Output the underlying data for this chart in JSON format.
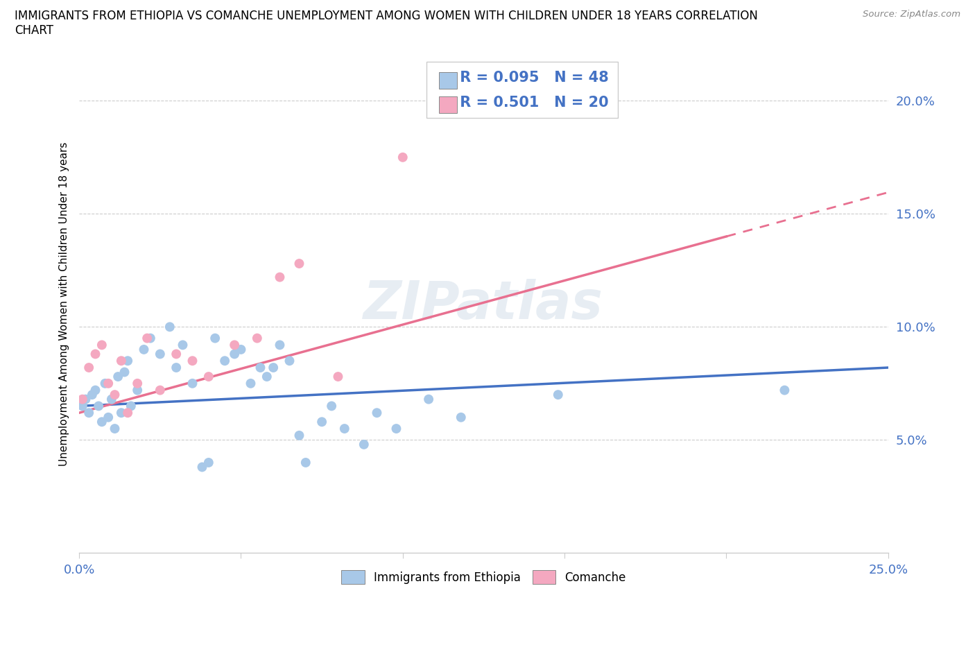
{
  "title": "IMMIGRANTS FROM ETHIOPIA VS COMANCHE UNEMPLOYMENT AMONG WOMEN WITH CHILDREN UNDER 18 YEARS CORRELATION\nCHART",
  "source": "Source: ZipAtlas.com",
  "ylabel": "Unemployment Among Women with Children Under 18 years",
  "xlim": [
    0.0,
    0.25
  ],
  "ylim": [
    0.0,
    0.22
  ],
  "xticks": [
    0.0,
    0.05,
    0.1,
    0.15,
    0.2,
    0.25
  ],
  "yticks": [
    0.05,
    0.1,
    0.15,
    0.2
  ],
  "xticklabels": [
    "0.0%",
    "",
    "",
    "",
    "",
    "25.0%"
  ],
  "yticklabels": [
    "5.0%",
    "10.0%",
    "15.0%",
    "20.0%"
  ],
  "ethiopia_color": "#a8c8e8",
  "comanche_color": "#f4a8c0",
  "trendline_ethiopia_color": "#4472c4",
  "trendline_comanche_color": "#e87090",
  "R_ethiopia": 0.095,
  "N_ethiopia": 48,
  "R_comanche": 0.501,
  "N_comanche": 20,
  "legend_label_ethiopia": "Immigrants from Ethiopia",
  "legend_label_comanche": "Comanche",
  "watermark": "ZIPatlas",
  "ethiopia_x": [
    0.001,
    0.002,
    0.003,
    0.004,
    0.005,
    0.006,
    0.007,
    0.008,
    0.009,
    0.01,
    0.011,
    0.012,
    0.013,
    0.014,
    0.015,
    0.016,
    0.018,
    0.02,
    0.022,
    0.025,
    0.028,
    0.03,
    0.032,
    0.035,
    0.038,
    0.04,
    0.042,
    0.045,
    0.048,
    0.05,
    0.053,
    0.056,
    0.058,
    0.06,
    0.062,
    0.065,
    0.068,
    0.07,
    0.075,
    0.078,
    0.082,
    0.088,
    0.092,
    0.098,
    0.108,
    0.118,
    0.148,
    0.218
  ],
  "ethiopia_y": [
    0.065,
    0.068,
    0.062,
    0.07,
    0.072,
    0.065,
    0.058,
    0.075,
    0.06,
    0.068,
    0.055,
    0.078,
    0.062,
    0.08,
    0.085,
    0.065,
    0.072,
    0.09,
    0.095,
    0.088,
    0.1,
    0.082,
    0.092,
    0.075,
    0.038,
    0.04,
    0.095,
    0.085,
    0.088,
    0.09,
    0.075,
    0.082,
    0.078,
    0.082,
    0.092,
    0.085,
    0.052,
    0.04,
    0.058,
    0.065,
    0.055,
    0.048,
    0.062,
    0.055,
    0.068,
    0.06,
    0.07,
    0.072
  ],
  "comanche_x": [
    0.001,
    0.003,
    0.005,
    0.007,
    0.009,
    0.011,
    0.013,
    0.015,
    0.018,
    0.021,
    0.025,
    0.03,
    0.035,
    0.04,
    0.048,
    0.055,
    0.062,
    0.068,
    0.08,
    0.1
  ],
  "comanche_y": [
    0.068,
    0.082,
    0.088,
    0.092,
    0.075,
    0.07,
    0.085,
    0.062,
    0.075,
    0.095,
    0.072,
    0.088,
    0.085,
    0.078,
    0.092,
    0.095,
    0.122,
    0.128,
    0.078,
    0.175
  ]
}
